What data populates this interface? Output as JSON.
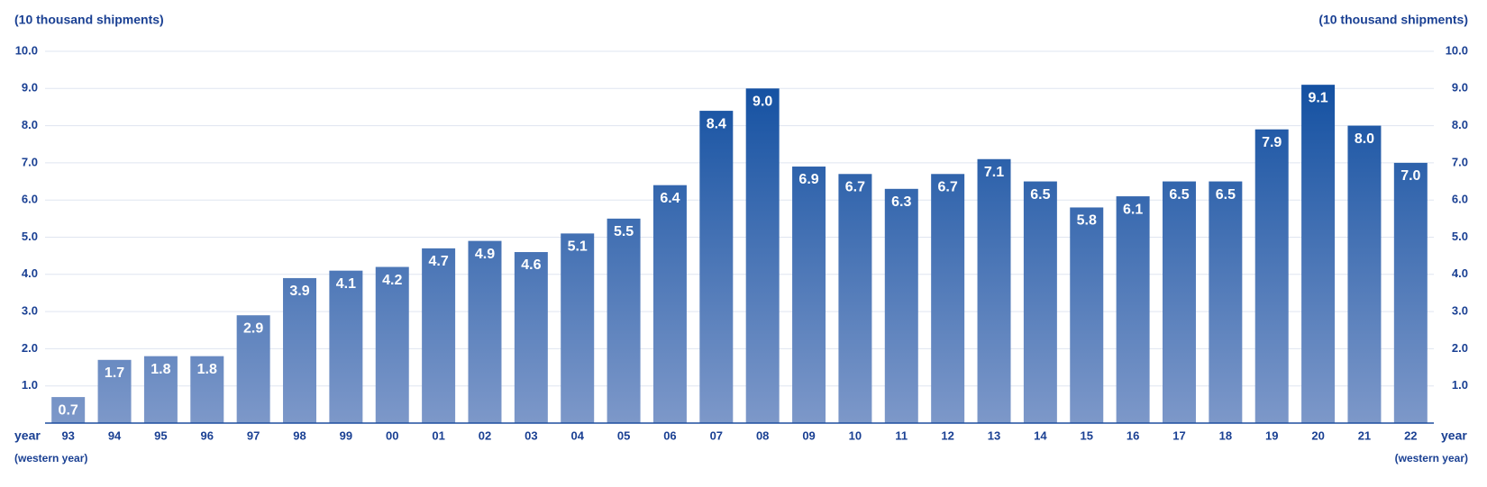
{
  "chart_data": {
    "type": "bar",
    "y_label": "(10 thousand shipments)",
    "x_label": "year",
    "x_sublabel": "(western year)",
    "categories": [
      "93",
      "94",
      "95",
      "96",
      "97",
      "98",
      "99",
      "00",
      "01",
      "02",
      "03",
      "04",
      "05",
      "06",
      "07",
      "08",
      "09",
      "10",
      "11",
      "12",
      "13",
      "14",
      "15",
      "16",
      "17",
      "18",
      "19",
      "20",
      "21",
      "22"
    ],
    "values": [
      0.7,
      1.7,
      1.8,
      1.8,
      2.9,
      3.9,
      4.1,
      4.2,
      4.7,
      4.9,
      4.6,
      5.1,
      5.5,
      6.4,
      8.4,
      9.0,
      6.9,
      6.7,
      6.3,
      6.7,
      7.1,
      6.5,
      5.8,
      6.1,
      6.5,
      6.5,
      7.9,
      9.1,
      8.0,
      7.0
    ],
    "value_labels": [
      "0.7",
      "1.7",
      "1.8",
      "1.8",
      "2.9",
      "3.9",
      "4.1",
      "4.2",
      "4.7",
      "4.9",
      "4.6",
      "5.1",
      "5.5",
      "6.4",
      "8.4",
      "9.0",
      "6.9",
      "6.7",
      "6.3",
      "6.7",
      "7.1",
      "6.5",
      "5.8",
      "6.1",
      "6.5",
      "6.5",
      "7.9",
      "9.1",
      "8.0",
      "7.0"
    ],
    "color": "#0a4a9e",
    "ylim": [
      0,
      10
    ],
    "yticks": [
      {
        "value": 1,
        "label": "1.0"
      },
      {
        "value": 2,
        "label": "2.0"
      },
      {
        "value": 3,
        "label": "3.0"
      },
      {
        "value": 4,
        "label": "4.0"
      },
      {
        "value": 5,
        "label": "5.0"
      },
      {
        "value": 6,
        "label": "6.0"
      },
      {
        "value": 7,
        "label": "7.0"
      },
      {
        "value": 8,
        "label": "8.0"
      },
      {
        "value": 9,
        "label": "9.0"
      },
      {
        "value": 10,
        "label": "10.0"
      }
    ],
    "y2lim": [
      0,
      10
    ],
    "y2ticks": [
      {
        "value": 1,
        "label": "1.0"
      },
      {
        "value": 2,
        "label": "2.0"
      },
      {
        "value": 3,
        "label": "3.0"
      },
      {
        "value": 4,
        "label": "4.0"
      },
      {
        "value": 5,
        "label": "5.0"
      },
      {
        "value": 6,
        "label": "6.0"
      },
      {
        "value": 7,
        "label": "7.0"
      },
      {
        "value": 8,
        "label": "8.0"
      },
      {
        "value": 9,
        "label": "9.0"
      },
      {
        "value": 10,
        "label": "10.0"
      }
    ],
    "grid": true
  }
}
